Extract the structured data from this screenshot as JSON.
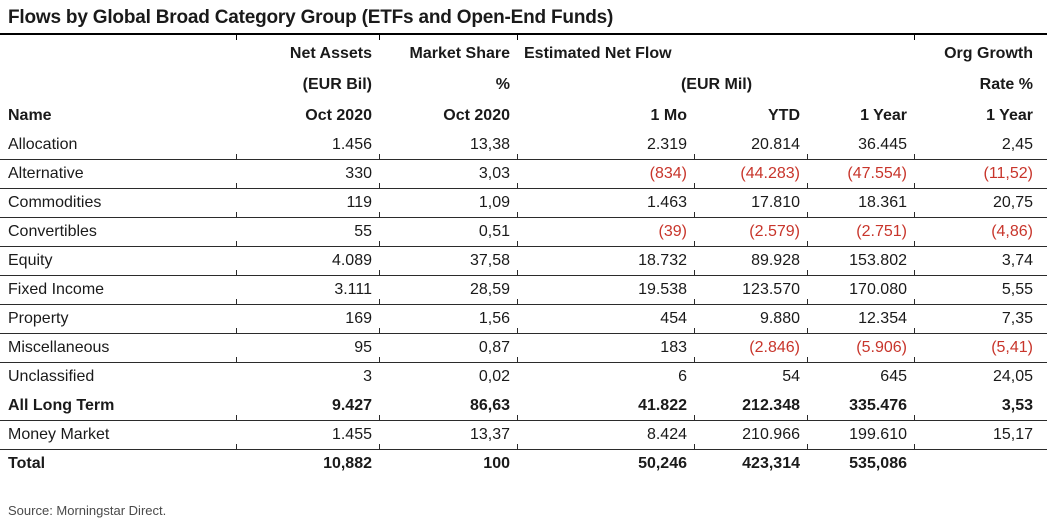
{
  "title": "Flows by Global Broad Category Group (ETFs and Open-End Funds)",
  "columns": {
    "name_label": "Name",
    "net_assets": {
      "title": "Net Assets",
      "unit": "(EUR Bil)",
      "period": "Oct 2020"
    },
    "market_share": {
      "title": "Market Share",
      "unit": "%",
      "period": "Oct 2020"
    },
    "estimated_net_flow": {
      "title": "Estimated Net Flow",
      "unit": "(EUR Mil)",
      "sub_columns": [
        "1 Mo",
        "YTD",
        "1 Year"
      ]
    },
    "org_growth": {
      "title": "Org Growth",
      "unit": "Rate %",
      "period": "1 Year"
    }
  },
  "table": {
    "rows": [
      {
        "name": "Allocation",
        "values": [
          "1.456",
          "13,38",
          "2.319",
          "20.814",
          "36.445",
          "2,45"
        ],
        "bold": false,
        "rule_below": true
      },
      {
        "name": "Alternative",
        "values": [
          "330",
          "3,03",
          "(834)",
          "(44.283)",
          "(47.554)",
          "(11,52)"
        ],
        "bold": false,
        "rule_below": true
      },
      {
        "name": "Commodities",
        "values": [
          "119",
          "1,09",
          "1.463",
          "17.810",
          "18.361",
          "20,75"
        ],
        "bold": false,
        "rule_below": true
      },
      {
        "name": "Convertibles",
        "values": [
          "55",
          "0,51",
          "(39)",
          "(2.579)",
          "(2.751)",
          "(4,86)"
        ],
        "bold": false,
        "rule_below": true
      },
      {
        "name": "Equity",
        "values": [
          "4.089",
          "37,58",
          "18.732",
          "89.928",
          "153.802",
          "3,74"
        ],
        "bold": false,
        "rule_below": true
      },
      {
        "name": "Fixed Income",
        "values": [
          "3.111",
          "28,59",
          "19.538",
          "123.570",
          "170.080",
          "5,55"
        ],
        "bold": false,
        "rule_below": true
      },
      {
        "name": "Property",
        "values": [
          "169",
          "1,56",
          "454",
          "9.880",
          "12.354",
          "7,35"
        ],
        "bold": false,
        "rule_below": true
      },
      {
        "name": "Miscellaneous",
        "values": [
          "95",
          "0,87",
          "183",
          "(2.846)",
          "(5.906)",
          "(5,41)"
        ],
        "bold": false,
        "rule_below": true
      },
      {
        "name": "Unclassified",
        "values": [
          "3",
          "0,02",
          "6",
          "54",
          "645",
          "24,05"
        ],
        "bold": false,
        "rule_below": false
      },
      {
        "name": "All Long Term",
        "values": [
          "9.427",
          "86,63",
          "41.822",
          "212.348",
          "335.476",
          "3,53"
        ],
        "bold": true,
        "rule_below": true
      },
      {
        "name": "Money Market",
        "values": [
          "1.455",
          "13,37",
          "8.424",
          "210.966",
          "199.610",
          "15,17"
        ],
        "bold": false,
        "rule_below": true
      },
      {
        "name": "Total",
        "values": [
          "10,882",
          "100",
          "50,246",
          "423,314",
          "535,086",
          ""
        ],
        "bold": true,
        "rule_below": false
      }
    ]
  },
  "source_note": "Source: Morningstar Direct.",
  "colors": {
    "negative_red": "#C8352B",
    "text_black": "#1A1A1A",
    "rule_black": "#000000",
    "row_line": "#2B2B2B",
    "source_gray": "#4A4A4A"
  }
}
